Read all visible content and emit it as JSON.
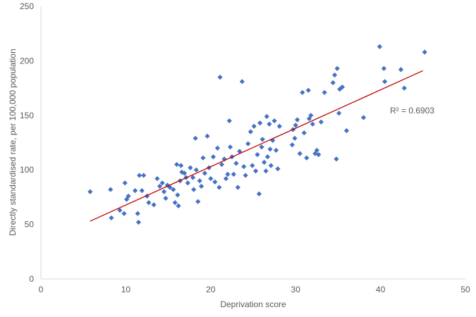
{
  "chart_data": {
    "type": "scatter",
    "xlabel": "Deprivation score",
    "ylabel": "Directly standardised rate, per 100,000 population",
    "xlim": [
      0,
      50
    ],
    "ylim": [
      0,
      250
    ],
    "x_ticks": [
      "0",
      "10",
      "20",
      "30",
      "40",
      "50"
    ],
    "y_ticks": [
      "0",
      "50",
      "100",
      "150",
      "200",
      "250"
    ],
    "grid": false,
    "legend": "none",
    "marker_color": "#4472C4",
    "marker_shape": "diamond",
    "trendline": {
      "type": "linear",
      "color": "#C00000",
      "x_start": 5.8,
      "y_start": 53,
      "x_end": 45,
      "y_end": 191,
      "annotation": "R² = 0.6903"
    },
    "points": [
      [
        5.8,
        80
      ],
      [
        8.2,
        82
      ],
      [
        8.3,
        56
      ],
      [
        9.3,
        63
      ],
      [
        9.8,
        60
      ],
      [
        9.9,
        88
      ],
      [
        10.1,
        73
      ],
      [
        10.3,
        76
      ],
      [
        11.1,
        81
      ],
      [
        11.4,
        60
      ],
      [
        11.5,
        52
      ],
      [
        11.6,
        95
      ],
      [
        11.9,
        81
      ],
      [
        12.1,
        95
      ],
      [
        12.5,
        76
      ],
      [
        12.7,
        70
      ],
      [
        13.3,
        68
      ],
      [
        13.7,
        92
      ],
      [
        14.0,
        85
      ],
      [
        14.3,
        88
      ],
      [
        14.5,
        80
      ],
      [
        14.7,
        74
      ],
      [
        14.9,
        86
      ],
      [
        15.2,
        84
      ],
      [
        15.6,
        82
      ],
      [
        15.8,
        70
      ],
      [
        16.0,
        105
      ],
      [
        16.1,
        77
      ],
      [
        16.2,
        67
      ],
      [
        16.4,
        90
      ],
      [
        16.5,
        104
      ],
      [
        16.6,
        98
      ],
      [
        16.9,
        97
      ],
      [
        17.1,
        93
      ],
      [
        17.3,
        88
      ],
      [
        17.6,
        102
      ],
      [
        17.9,
        93
      ],
      [
        18.0,
        82
      ],
      [
        18.2,
        129
      ],
      [
        18.3,
        100
      ],
      [
        18.5,
        71
      ],
      [
        18.7,
        90
      ],
      [
        18.9,
        85
      ],
      [
        19.1,
        111
      ],
      [
        19.3,
        97
      ],
      [
        19.6,
        131
      ],
      [
        19.8,
        102
      ],
      [
        20.0,
        92
      ],
      [
        20.3,
        112
      ],
      [
        20.5,
        89
      ],
      [
        20.8,
        120
      ],
      [
        21.0,
        84
      ],
      [
        21.1,
        185
      ],
      [
        21.3,
        105
      ],
      [
        21.6,
        110
      ],
      [
        21.8,
        92
      ],
      [
        22.0,
        96
      ],
      [
        22.2,
        145
      ],
      [
        22.3,
        121
      ],
      [
        22.5,
        112
      ],
      [
        22.7,
        96
      ],
      [
        23.0,
        106
      ],
      [
        23.2,
        84
      ],
      [
        23.4,
        117
      ],
      [
        23.7,
        181
      ],
      [
        23.9,
        103
      ],
      [
        24.1,
        95
      ],
      [
        24.4,
        124
      ],
      [
        24.7,
        135
      ],
      [
        24.9,
        104
      ],
      [
        25.1,
        140
      ],
      [
        25.3,
        99
      ],
      [
        25.5,
        114
      ],
      [
        25.7,
        78
      ],
      [
        25.8,
        143
      ],
      [
        26.0,
        121
      ],
      [
        26.1,
        128
      ],
      [
        26.3,
        107
      ],
      [
        26.5,
        99
      ],
      [
        26.6,
        149
      ],
      [
        26.7,
        112
      ],
      [
        26.9,
        142
      ],
      [
        27.0,
        119
      ],
      [
        27.1,
        104
      ],
      [
        27.3,
        127
      ],
      [
        27.5,
        145
      ],
      [
        27.7,
        118
      ],
      [
        27.9,
        101
      ],
      [
        28.1,
        140
      ],
      [
        29.6,
        123
      ],
      [
        29.7,
        137
      ],
      [
        29.9,
        129
      ],
      [
        30.0,
        141
      ],
      [
        30.2,
        146
      ],
      [
        30.5,
        115
      ],
      [
        30.8,
        171
      ],
      [
        31.0,
        134
      ],
      [
        31.3,
        111
      ],
      [
        31.5,
        173
      ],
      [
        31.6,
        147
      ],
      [
        31.8,
        150
      ],
      [
        32.0,
        142
      ],
      [
        32.3,
        115
      ],
      [
        32.5,
        118
      ],
      [
        32.7,
        114
      ],
      [
        33.0,
        144
      ],
      [
        33.4,
        171
      ],
      [
        34.4,
        180
      ],
      [
        34.6,
        187
      ],
      [
        34.8,
        110
      ],
      [
        34.9,
        193
      ],
      [
        35.1,
        152
      ],
      [
        35.2,
        174
      ],
      [
        35.5,
        176
      ],
      [
        36.0,
        136
      ],
      [
        38.0,
        148
      ],
      [
        39.9,
        213
      ],
      [
        40.4,
        193
      ],
      [
        40.5,
        181
      ],
      [
        42.4,
        192
      ],
      [
        42.8,
        175
      ],
      [
        45.2,
        208
      ]
    ]
  }
}
